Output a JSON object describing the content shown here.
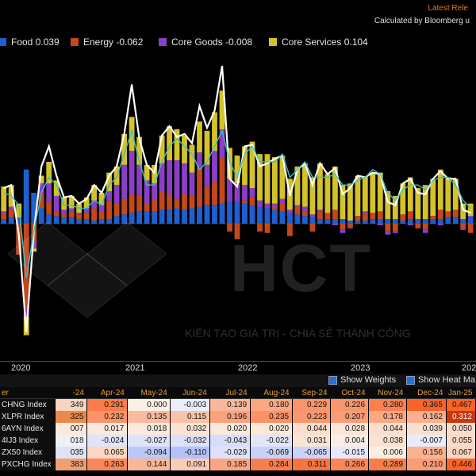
{
  "header": {
    "latest_release": "Latest Rele",
    "calculated_by": "Calculated by Bloomberg u"
  },
  "legend": [
    {
      "name": "Food",
      "value": "0.039",
      "color": "#1f5fd1"
    },
    {
      "name": "Energy",
      "value": "-0.062",
      "color": "#c4481c"
    },
    {
      "name": "Core Goods",
      "value": "-0.008",
      "color": "#8a3fc7"
    },
    {
      "name": "Core Services",
      "value": "0.104",
      "color": "#d4c22a"
    }
  ],
  "x_axis": {
    "labels": [
      "2020",
      "2021",
      "2022",
      "2023",
      "202"
    ]
  },
  "watermark": {
    "brand": "HCT",
    "slogan": "KIẾN TẠO GIÁ TRỊ - CHIA SẺ THÀNH CÔNG"
  },
  "table_controls": {
    "show_weights": "Show Weights",
    "show_heatmap": "Show Heat Ma"
  },
  "table": {
    "headers": [
      "er",
      "-24",
      "Apr-24",
      "May-24",
      "Jun-24",
      "Jul-24",
      "Aug-24",
      "Sep-24",
      "Oct-24",
      "Nov-24",
      "Dec-24",
      "Jan-25"
    ],
    "rows": [
      {
        "name": "CHNG Index",
        "cells": [
          "349",
          "0.291",
          "0.000",
          "-0.003",
          "0.139",
          "0.180",
          "0.229",
          "0.226",
          "0.280",
          "0.365",
          "0.467"
        ]
      },
      {
        "name": "XLPR Index",
        "cells": [
          "325",
          "0.232",
          "0.135",
          "0.115",
          "0.196",
          "0.235",
          "0.223",
          "0.207",
          "0.178",
          "0.162",
          "0.312"
        ]
      },
      {
        "name": "6AYN Index",
        "cells": [
          "007",
          "0.017",
          "0.018",
          "0.032",
          "0.020",
          "0.020",
          "0.044",
          "0.028",
          "0.044",
          "0.039",
          "0.050"
        ]
      },
      {
        "name": "4IJ3 Index",
        "cells": [
          "018",
          "-0.024",
          "-0.027",
          "-0.032",
          "-0.043",
          "-0.022",
          "0.031",
          "0.004",
          "0.038",
          "-0.007",
          "0.055"
        ]
      },
      {
        "name": "ZX50 Index",
        "cells": [
          "035",
          "0.065",
          "-0.094",
          "-0.110",
          "-0.029",
          "-0.069",
          "-0.065",
          "-0.015",
          "0.006",
          "0.156",
          "0.067"
        ]
      },
      {
        "name": "PXCHG Index",
        "cells": [
          "383",
          "0.263",
          "0.144",
          "0.091",
          "0.185",
          "0.284",
          "0.311",
          "0.266",
          "0.289",
          "0.210",
          "0.446"
        ]
      }
    ]
  },
  "chart_data": {
    "type": "bar",
    "stacked": true,
    "x_start": "2019-12",
    "x_end": "2025-01",
    "ylim": [
      -0.7,
      1.0
    ],
    "series": [
      {
        "name": "Food",
        "color": "#1f5fd1",
        "values": [
          0.03,
          0.04,
          0.04,
          0.35,
          0.2,
          0.1,
          0.06,
          0.05,
          0.04,
          0.04,
          0.03,
          0.03,
          0.02,
          0.03,
          0.03,
          0.05,
          0.06,
          0.07,
          0.08,
          0.08,
          0.08,
          0.09,
          0.09,
          0.1,
          0.09,
          0.1,
          0.11,
          0.12,
          0.12,
          0.13,
          0.14,
          0.14,
          0.13,
          0.12,
          0.11,
          0.1,
          0.09,
          0.08,
          0.07,
          0.06,
          0.05,
          0.04,
          0.03,
          0.03,
          0.03,
          0.03,
          0.02,
          0.02,
          0.02,
          0.03,
          0.03,
          0.03,
          0.03,
          0.02,
          0.03,
          0.03,
          0.03,
          0.03,
          0.03,
          0.04,
          0.04,
          0.03,
          0.04
        ]
      },
      {
        "name": "Energy",
        "color": "#c4481c",
        "values": [
          0.04,
          0.05,
          -0.2,
          -0.55,
          -0.12,
          0.1,
          0.08,
          0.03,
          0.02,
          0.04,
          0.03,
          0.04,
          0.08,
          0.05,
          0.12,
          0.08,
          0.1,
          0.12,
          0.1,
          0.05,
          0.08,
          0.12,
          0.1,
          0.06,
          0.1,
          0.08,
          0.25,
          0.12,
          0.15,
          0.3,
          -0.05,
          -0.1,
          0.02,
          0.05,
          -0.05,
          -0.06,
          0.02,
          0.05,
          -0.08,
          0.05,
          0.03,
          -0.05,
          0.05,
          0.04,
          0.06,
          -0.04,
          -0.02,
          0.03,
          0.05,
          0.04,
          0.05,
          -0.05,
          -0.05,
          0.04,
          0.05,
          -0.03,
          -0.04,
          0.02,
          0.06,
          0.04,
          0.05,
          -0.03,
          -0.06
        ]
      },
      {
        "name": "Core Goods",
        "color": "#8a3fc7",
        "values": [
          0.01,
          0.02,
          0.0,
          -0.05,
          -0.04,
          0.06,
          0.12,
          0.1,
          0.03,
          0.02,
          0.01,
          0.03,
          0.05,
          0.04,
          0.06,
          0.12,
          0.22,
          0.28,
          0.2,
          0.15,
          0.1,
          0.18,
          0.22,
          0.25,
          0.2,
          0.15,
          0.1,
          0.14,
          0.2,
          0.18,
          0.15,
          0.12,
          0.1,
          0.06,
          0.04,
          0.03,
          0.02,
          0.03,
          0.02,
          0.01,
          0.03,
          0.02,
          0.01,
          0.0,
          -0.01,
          -0.02,
          -0.01,
          0.0,
          0.01,
          0.0,
          -0.01,
          -0.02,
          -0.01,
          0.0,
          -0.01,
          0.0,
          -0.02,
          0.0,
          -0.01,
          0.0,
          0.0,
          -0.01,
          0.01
        ]
      },
      {
        "name": "Core Services",
        "color": "#d4c22a",
        "values": [
          0.16,
          0.14,
          0.09,
          -0.12,
          -0.02,
          0.05,
          0.14,
          0.1,
          0.08,
          0.08,
          0.06,
          0.07,
          0.1,
          0.08,
          0.12,
          0.12,
          0.2,
          0.22,
          0.18,
          0.1,
          0.12,
          0.18,
          0.22,
          0.2,
          0.18,
          0.18,
          0.2,
          0.22,
          0.25,
          0.25,
          0.2,
          0.18,
          0.25,
          0.3,
          0.3,
          0.32,
          0.3,
          0.28,
          0.2,
          0.25,
          0.28,
          0.24,
          0.3,
          0.25,
          0.28,
          0.22,
          0.24,
          0.26,
          0.22,
          0.26,
          0.25,
          0.18,
          0.15,
          0.2,
          0.22,
          0.2,
          0.22,
          0.24,
          0.26,
          0.22,
          0.2,
          0.1,
          0.08
        ]
      },
      {
        "name": "Headline",
        "type": "line",
        "color": "#ffffff",
        "values": [
          0.23,
          0.25,
          -0.07,
          -0.7,
          -0.05,
          0.37,
          0.5,
          0.31,
          0.17,
          0.18,
          0.13,
          0.16,
          0.25,
          0.2,
          0.31,
          0.37,
          0.58,
          0.9,
          0.55,
          0.38,
          0.33,
          0.57,
          0.63,
          0.56,
          0.58,
          0.52,
          0.76,
          0.62,
          0.73,
          1.02,
          0.29,
          0.24,
          0.5,
          0.51,
          0.37,
          0.39,
          0.42,
          0.44,
          0.18,
          0.35,
          0.39,
          0.25,
          0.39,
          0.32,
          0.36,
          0.19,
          0.23,
          0.31,
          0.3,
          0.33,
          0.32,
          0.14,
          0.12,
          0.26,
          0.29,
          0.2,
          0.19,
          0.29,
          0.34,
          0.29,
          0.29,
          0.09,
          0.07
        ]
      },
      {
        "name": "Core",
        "type": "line",
        "color": "#3ac0c8",
        "values": [
          0.2,
          0.18,
          0.12,
          -0.35,
          -0.05,
          0.2,
          0.3,
          0.25,
          0.12,
          0.12,
          0.1,
          0.1,
          0.15,
          0.12,
          0.25,
          0.3,
          0.45,
          0.6,
          0.4,
          0.25,
          0.25,
          0.4,
          0.5,
          0.55,
          0.5,
          0.45,
          0.35,
          0.4,
          0.5,
          0.6,
          0.4,
          0.3,
          0.45,
          0.5,
          0.4,
          0.4,
          0.4,
          0.45,
          0.3,
          0.35,
          0.4,
          0.3,
          0.3,
          0.3,
          0.32,
          0.25,
          0.25,
          0.28,
          0.3,
          0.35,
          0.32,
          0.2,
          0.15,
          0.22,
          0.25,
          0.25,
          0.22,
          0.28,
          0.3,
          0.3,
          0.25,
          0.15,
          0.1
        ]
      }
    ],
    "heatmap_colors": {
      "row_colors": [
        "#f6d6c0",
        "#e88a4a",
        "#fbe9dc",
        "#eef0f6",
        "#dfe3f5",
        "#f0a070"
      ]
    }
  }
}
